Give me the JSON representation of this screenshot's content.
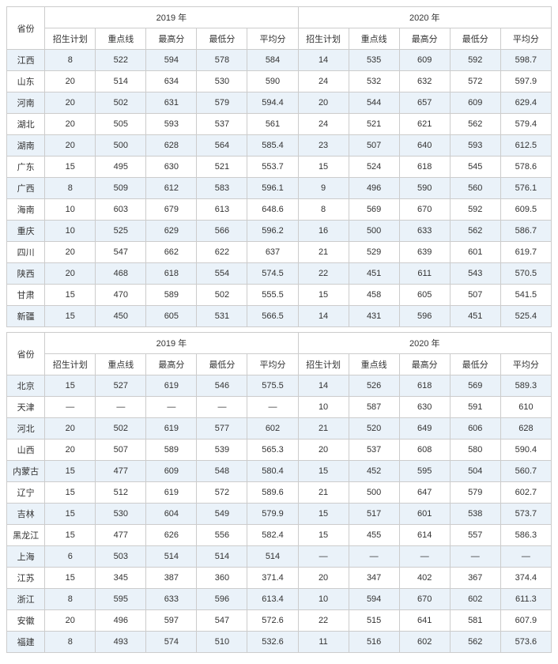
{
  "headers": {
    "province": "省份",
    "year2019": "2019 年",
    "year2020": "2020 年",
    "plan": "招生计划",
    "keyline": "重点线",
    "max": "最高分",
    "min": "最低分",
    "avg": "平均分"
  },
  "style": {
    "background_color": "#ffffff",
    "border_color": "#cccccc",
    "row_odd_bg": "#eaf2f9",
    "row_even_bg": "#ffffff",
    "font_family": "Microsoft YaHei, SimSun, sans-serif",
    "font_size_pt": 8,
    "text_color": "#333333",
    "cell_align": "center"
  },
  "table1": {
    "type": "table",
    "columns": [
      "省份",
      "招生计划",
      "重点线",
      "最高分",
      "最低分",
      "平均分",
      "招生计划",
      "重点线",
      "最高分",
      "最低分",
      "平均分"
    ],
    "rows": [
      {
        "prov": "江西",
        "p19": "8",
        "k19": "522",
        "h19": "594",
        "l19": "578",
        "a19": "584",
        "p20": "14",
        "k20": "535",
        "h20": "609",
        "l20": "592",
        "a20": "598.7"
      },
      {
        "prov": "山东",
        "p19": "20",
        "k19": "514",
        "h19": "634",
        "l19": "530",
        "a19": "590",
        "p20": "24",
        "k20": "532",
        "h20": "632",
        "l20": "572",
        "a20": "597.9"
      },
      {
        "prov": "河南",
        "p19": "20",
        "k19": "502",
        "h19": "631",
        "l19": "579",
        "a19": "594.4",
        "p20": "20",
        "k20": "544",
        "h20": "657",
        "l20": "609",
        "a20": "629.4"
      },
      {
        "prov": "湖北",
        "p19": "20",
        "k19": "505",
        "h19": "593",
        "l19": "537",
        "a19": "561",
        "p20": "24",
        "k20": "521",
        "h20": "621",
        "l20": "562",
        "a20": "579.4"
      },
      {
        "prov": "湖南",
        "p19": "20",
        "k19": "500",
        "h19": "628",
        "l19": "564",
        "a19": "585.4",
        "p20": "23",
        "k20": "507",
        "h20": "640",
        "l20": "593",
        "a20": "612.5"
      },
      {
        "prov": "广东",
        "p19": "15",
        "k19": "495",
        "h19": "630",
        "l19": "521",
        "a19": "553.7",
        "p20": "15",
        "k20": "524",
        "h20": "618",
        "l20": "545",
        "a20": "578.6"
      },
      {
        "prov": "广西",
        "p19": "8",
        "k19": "509",
        "h19": "612",
        "l19": "583",
        "a19": "596.1",
        "p20": "9",
        "k20": "496",
        "h20": "590",
        "l20": "560",
        "a20": "576.1"
      },
      {
        "prov": "海南",
        "p19": "10",
        "k19": "603",
        "h19": "679",
        "l19": "613",
        "a19": "648.6",
        "p20": "8",
        "k20": "569",
        "h20": "670",
        "l20": "592",
        "a20": "609.5"
      },
      {
        "prov": "重庆",
        "p19": "10",
        "k19": "525",
        "h19": "629",
        "l19": "566",
        "a19": "596.2",
        "p20": "16",
        "k20": "500",
        "h20": "633",
        "l20": "562",
        "a20": "586.7"
      },
      {
        "prov": "四川",
        "p19": "20",
        "k19": "547",
        "h19": "662",
        "l19": "622",
        "a19": "637",
        "p20": "21",
        "k20": "529",
        "h20": "639",
        "l20": "601",
        "a20": "619.7"
      },
      {
        "prov": "陕西",
        "p19": "20",
        "k19": "468",
        "h19": "618",
        "l19": "554",
        "a19": "574.5",
        "p20": "22",
        "k20": "451",
        "h20": "611",
        "l20": "543",
        "a20": "570.5"
      },
      {
        "prov": "甘肃",
        "p19": "15",
        "k19": "470",
        "h19": "589",
        "l19": "502",
        "a19": "555.5",
        "p20": "15",
        "k20": "458",
        "h20": "605",
        "l20": "507",
        "a20": "541.5"
      },
      {
        "prov": "新疆",
        "p19": "15",
        "k19": "450",
        "h19": "605",
        "l19": "531",
        "a19": "566.5",
        "p20": "14",
        "k20": "431",
        "h20": "596",
        "l20": "451",
        "a20": "525.4"
      }
    ]
  },
  "table2": {
    "type": "table",
    "columns": [
      "省份",
      "招生计划",
      "重点线",
      "最高分",
      "最低分",
      "平均分",
      "招生计划",
      "重点线",
      "最高分",
      "最低分",
      "平均分"
    ],
    "rows": [
      {
        "prov": "北京",
        "p19": "15",
        "k19": "527",
        "h19": "619",
        "l19": "546",
        "a19": "575.5",
        "p20": "14",
        "k20": "526",
        "h20": "618",
        "l20": "569",
        "a20": "589.3"
      },
      {
        "prov": "天津",
        "p19": "—",
        "k19": "—",
        "h19": "—",
        "l19": "—",
        "a19": "—",
        "p20": "10",
        "k20": "587",
        "h20": "630",
        "l20": "591",
        "a20": "610"
      },
      {
        "prov": "河北",
        "p19": "20",
        "k19": "502",
        "h19": "619",
        "l19": "577",
        "a19": "602",
        "p20": "21",
        "k20": "520",
        "h20": "649",
        "l20": "606",
        "a20": "628"
      },
      {
        "prov": "山西",
        "p19": "20",
        "k19": "507",
        "h19": "589",
        "l19": "539",
        "a19": "565.3",
        "p20": "20",
        "k20": "537",
        "h20": "608",
        "l20": "580",
        "a20": "590.4"
      },
      {
        "prov": "内蒙古",
        "p19": "15",
        "k19": "477",
        "h19": "609",
        "l19": "548",
        "a19": "580.4",
        "p20": "15",
        "k20": "452",
        "h20": "595",
        "l20": "504",
        "a20": "560.7"
      },
      {
        "prov": "辽宁",
        "p19": "15",
        "k19": "512",
        "h19": "619",
        "l19": "572",
        "a19": "589.6",
        "p20": "21",
        "k20": "500",
        "h20": "647",
        "l20": "579",
        "a20": "602.7"
      },
      {
        "prov": "吉林",
        "p19": "15",
        "k19": "530",
        "h19": "604",
        "l19": "549",
        "a19": "579.9",
        "p20": "15",
        "k20": "517",
        "h20": "601",
        "l20": "538",
        "a20": "573.7"
      },
      {
        "prov": "黑龙江",
        "p19": "15",
        "k19": "477",
        "h19": "626",
        "l19": "556",
        "a19": "582.4",
        "p20": "15",
        "k20": "455",
        "h20": "614",
        "l20": "557",
        "a20": "586.3"
      },
      {
        "prov": "上海",
        "p19": "6",
        "k19": "503",
        "h19": "514",
        "l19": "514",
        "a19": "514",
        "p20": "—",
        "k20": "—",
        "h20": "—",
        "l20": "—",
        "a20": "—"
      },
      {
        "prov": "江苏",
        "p19": "15",
        "k19": "345",
        "h19": "387",
        "l19": "360",
        "a19": "371.4",
        "p20": "20",
        "k20": "347",
        "h20": "402",
        "l20": "367",
        "a20": "374.4"
      },
      {
        "prov": "浙江",
        "p19": "8",
        "k19": "595",
        "h19": "633",
        "l19": "596",
        "a19": "613.4",
        "p20": "10",
        "k20": "594",
        "h20": "670",
        "l20": "602",
        "a20": "611.3"
      },
      {
        "prov": "安徽",
        "p19": "20",
        "k19": "496",
        "h19": "597",
        "l19": "547",
        "a19": "572.6",
        "p20": "22",
        "k20": "515",
        "h20": "641",
        "l20": "581",
        "a20": "607.9"
      },
      {
        "prov": "福建",
        "p19": "8",
        "k19": "493",
        "h19": "574",
        "l19": "510",
        "a19": "532.6",
        "p20": "11",
        "k20": "516",
        "h20": "602",
        "l20": "562",
        "a20": "573.6"
      }
    ]
  }
}
